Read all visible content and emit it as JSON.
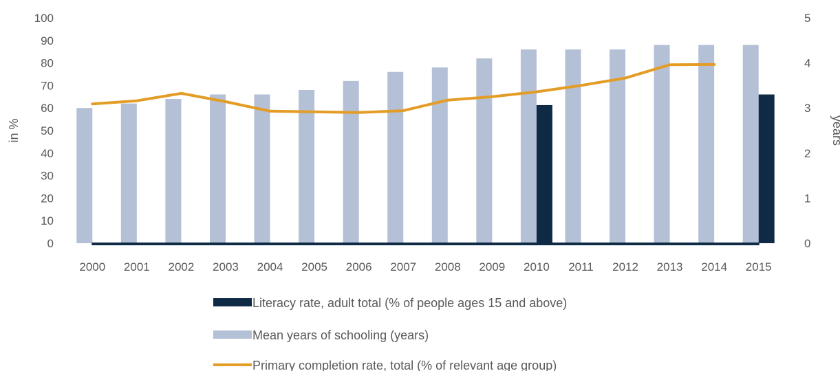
{
  "chart_data": {
    "type": "bar",
    "categories": [
      "2000",
      "2001",
      "2002",
      "2003",
      "2004",
      "2005",
      "2006",
      "2007",
      "2008",
      "2009",
      "2010",
      "2011",
      "2012",
      "2013",
      "2014",
      "2015"
    ],
    "series": [
      {
        "name": "Literacy rate, adult total (% of people ages 15 and above)",
        "type": "bar",
        "axis": "left",
        "color": "#0e2a45",
        "values": [
          null,
          null,
          null,
          null,
          null,
          null,
          null,
          null,
          null,
          null,
          61.3,
          null,
          null,
          null,
          null,
          66
        ]
      },
      {
        "name": "Mean years of schooling (years)",
        "type": "bar",
        "axis": "right",
        "color": "#b4c0d5",
        "values": [
          3.0,
          3.1,
          3.2,
          3.3,
          3.3,
          3.4,
          3.6,
          3.8,
          3.9,
          4.1,
          4.3,
          4.3,
          4.3,
          4.4,
          4.4,
          4.4
        ]
      },
      {
        "name": "Primary completion rate, total (% of relevant age group)",
        "type": "line",
        "axis": "left",
        "color": "#e39d26",
        "values": [
          61.8,
          63.2,
          66.5,
          62.8,
          58.6,
          58.3,
          58.0,
          58.8,
          63.5,
          65.0,
          67.2,
          70.0,
          73.3,
          79.2,
          79.3,
          null
        ]
      }
    ],
    "y_left": {
      "label": "in %",
      "ylim": [
        0,
        100
      ],
      "ticks": [
        "0",
        "10",
        "20",
        "30",
        "40",
        "50",
        "60",
        "70",
        "80",
        "90",
        "100"
      ]
    },
    "y_right": {
      "label": "years",
      "ylim": [
        0,
        5
      ],
      "ticks": [
        "0",
        "1",
        "2",
        "3",
        "4",
        "5"
      ]
    },
    "baseline_color": "#0e2a45",
    "grid": false,
    "legend_position": "bottom"
  }
}
